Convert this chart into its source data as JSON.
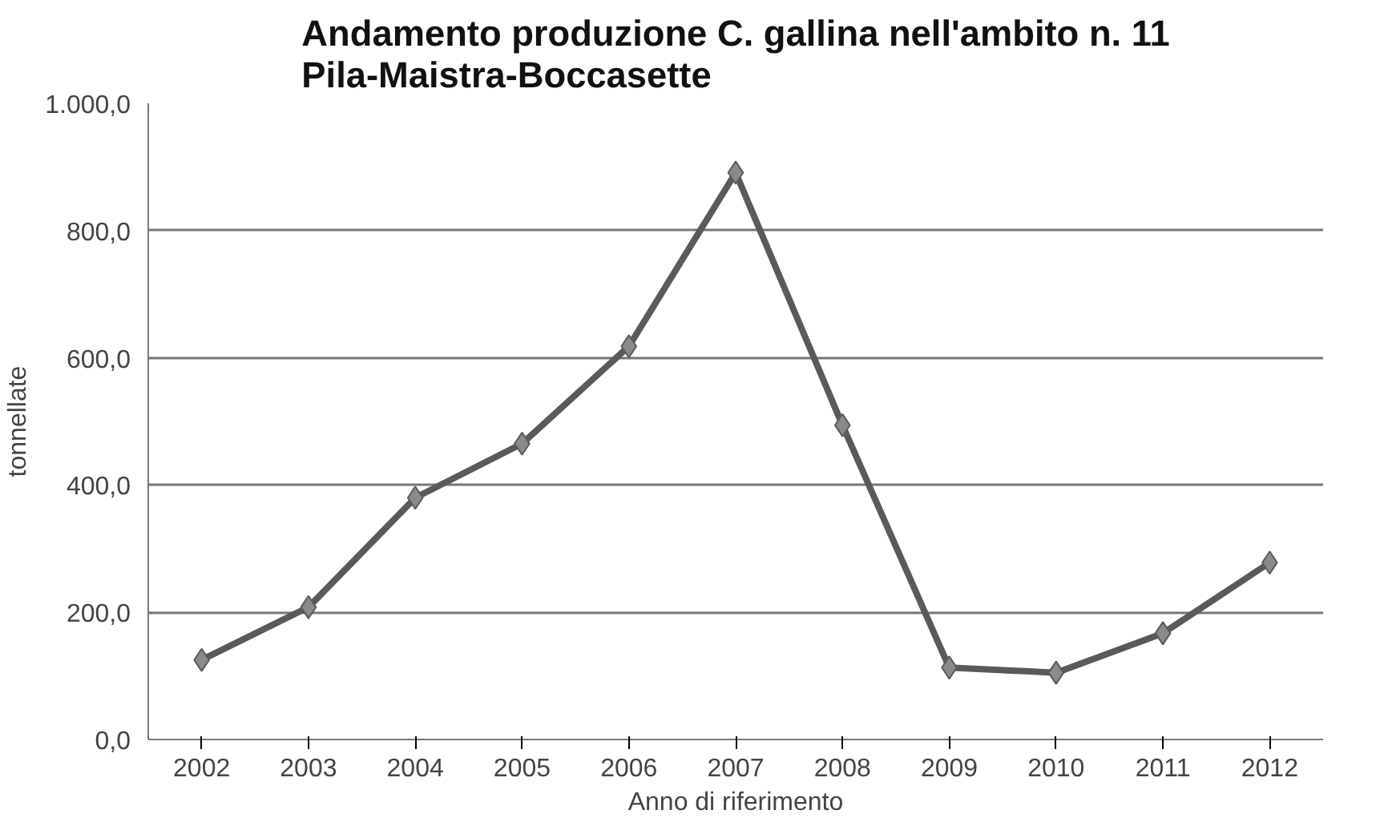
{
  "chart_data": {
    "type": "line",
    "title": "Andamento produzione C. gallina nell'ambito n. 11\nPila-Maistra-Boccasette",
    "xlabel": "Anno di riferimento",
    "ylabel": "tonnellate",
    "categories": [
      "2002",
      "2003",
      "2004",
      "2005",
      "2006",
      "2007",
      "2008",
      "2009",
      "2010",
      "2011",
      "2012"
    ],
    "series": [
      {
        "color": "#5a5a5a",
        "values": [
          125,
          208,
          380,
          465,
          618,
          891,
          494,
          113,
          105,
          167,
          278
        ]
      }
    ],
    "ylim": [
      0,
      1000
    ],
    "yticks": [
      {
        "value": 0,
        "label": "0,0"
      },
      {
        "value": 200,
        "label": "200,0"
      },
      {
        "value": 400,
        "label": "400,0"
      },
      {
        "value": 600,
        "label": "600,0"
      },
      {
        "value": 800,
        "label": "800,0"
      },
      {
        "value": 1000,
        "label": "1.000,0"
      }
    ],
    "grid": "y",
    "marker": "diamond",
    "line_style": "solid"
  }
}
